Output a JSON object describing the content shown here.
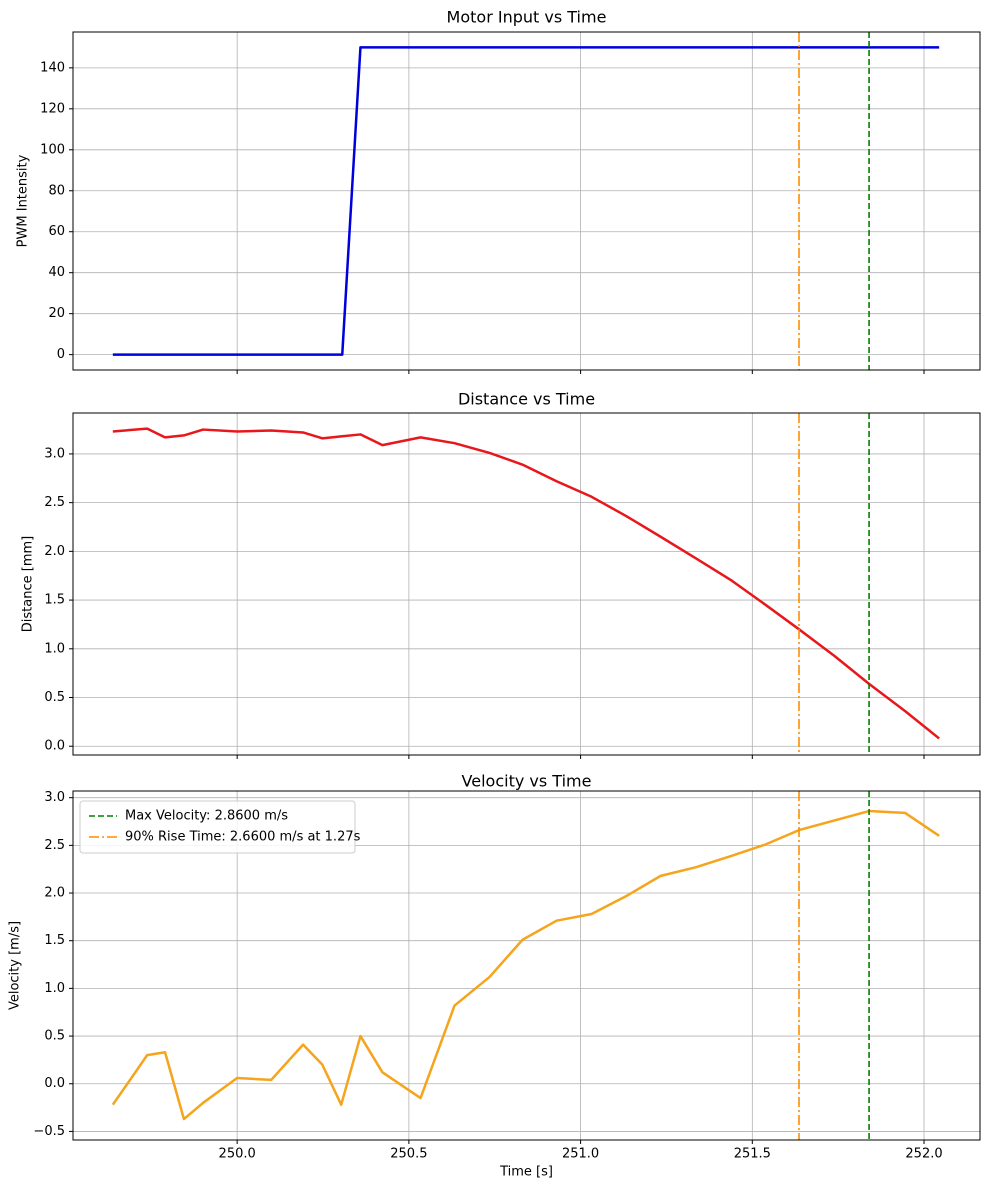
{
  "chart_data": [
    {
      "type": "line",
      "title": "Motor Input vs Time",
      "ylabel": "PWM Intensity",
      "x": [
        249.638,
        250.306,
        250.359,
        252.044
      ],
      "series": [
        {
          "color": "#0000dd",
          "values": [
            0,
            0,
            150,
            150
          ]
        }
      ],
      "xlim": [
        249.522,
        252.163
      ],
      "xticks": [
        250,
        250.5,
        251,
        251.5,
        252
      ],
      "ylim": [
        -7.5,
        157.5
      ],
      "yticks": [
        0,
        20,
        40,
        60,
        80,
        100,
        120,
        140
      ],
      "grid": true,
      "vlines": [
        {
          "x": 251.636,
          "color": "#ff8c00",
          "dash": "dashdot"
        },
        {
          "x": 251.84,
          "color": "#008000",
          "dash": "dashed"
        }
      ]
    },
    {
      "type": "line",
      "title": "Distance vs Time",
      "ylabel": "Distance [mm]",
      "x": [
        249.638,
        249.738,
        249.79,
        249.845,
        249.901,
        250.0,
        250.099,
        250.192,
        250.248,
        250.303,
        250.359,
        250.423,
        250.534,
        250.633,
        250.735,
        250.831,
        250.93,
        251.032,
        251.134,
        251.233,
        251.335,
        251.44,
        251.539,
        251.636,
        251.738,
        251.84,
        251.945,
        252.044
      ],
      "series": [
        {
          "color": "#e8171b",
          "values": [
            3.23,
            3.26,
            3.17,
            3.19,
            3.25,
            3.23,
            3.24,
            3.22,
            3.16,
            3.18,
            3.2,
            3.09,
            3.17,
            3.11,
            3.01,
            2.89,
            2.72,
            2.56,
            2.36,
            2.15,
            1.93,
            1.7,
            1.45,
            1.2,
            0.93,
            0.64,
            0.36,
            0.08
          ]
        }
      ],
      "xlim": [
        249.522,
        252.163
      ],
      "xticks": [
        250,
        250.5,
        251,
        251.5,
        252
      ],
      "ylim": [
        -0.09,
        3.42
      ],
      "yticks": [
        {
          "value": 0,
          "label": "0.0"
        },
        {
          "value": 0.5,
          "label": "0.5"
        },
        {
          "value": 1,
          "label": "1.0"
        },
        {
          "value": 1.5,
          "label": "1.5"
        },
        {
          "value": 2,
          "label": "2.0"
        },
        {
          "value": 2.5,
          "label": "2.5"
        },
        {
          "value": 3,
          "label": "3.0"
        }
      ],
      "grid": true,
      "vlines": [
        {
          "x": 251.636,
          "color": "#ff8c00",
          "dash": "dashdot"
        },
        {
          "x": 251.84,
          "color": "#008000",
          "dash": "dashed"
        }
      ]
    },
    {
      "type": "line",
      "title": "Velocity vs Time",
      "ylabel": "Velocity [m/s]",
      "xlabel": "Time [s]",
      "x": [
        249.638,
        249.738,
        249.79,
        249.845,
        249.901,
        250.0,
        250.099,
        250.192,
        250.248,
        250.303,
        250.359,
        250.423,
        250.534,
        250.633,
        250.735,
        250.831,
        250.93,
        251.032,
        251.134,
        251.233,
        251.335,
        251.44,
        251.539,
        251.636,
        251.738,
        251.84,
        251.945,
        252.044
      ],
      "series": [
        {
          "color": "#f5a41c",
          "values": [
            -0.22,
            0.3,
            0.33,
            -0.37,
            -0.2,
            0.06,
            0.04,
            0.41,
            0.2,
            -0.22,
            0.5,
            0.12,
            -0.15,
            0.82,
            1.12,
            1.51,
            1.71,
            1.78,
            1.97,
            2.18,
            2.27,
            2.39,
            2.51,
            2.66,
            2.76,
            2.86,
            2.84,
            2.6
          ]
        }
      ],
      "xlim": [
        249.522,
        252.163
      ],
      "xticks": [
        {
          "value": 250,
          "label": "250.0"
        },
        {
          "value": 250.5,
          "label": "250.5"
        },
        {
          "value": 251,
          "label": "251.0"
        },
        {
          "value": 251.5,
          "label": "251.5"
        },
        {
          "value": 252,
          "label": "252.0"
        }
      ],
      "ylim": [
        -0.59,
        3.07
      ],
      "yticks": [
        {
          "value": -0.5,
          "label": "−0.5"
        },
        {
          "value": 0,
          "label": "0.0"
        },
        {
          "value": 0.5,
          "label": "0.5"
        },
        {
          "value": 1,
          "label": "1.0"
        },
        {
          "value": 1.5,
          "label": "1.5"
        },
        {
          "value": 2,
          "label": "2.0"
        },
        {
          "value": 2.5,
          "label": "2.5"
        },
        {
          "value": 3,
          "label": "3.0"
        }
      ],
      "grid": true,
      "legend": "upper left",
      "vlines": [
        {
          "x": 251.84,
          "color": "#008000",
          "dash": "dashed",
          "name": "Max Velocity: 2.8600 m/s"
        },
        {
          "x": 251.636,
          "color": "#ff8c00",
          "dash": "dashdot",
          "name": "90% Rise Time: 2.6600 m/s at 1.27s"
        }
      ]
    }
  ]
}
